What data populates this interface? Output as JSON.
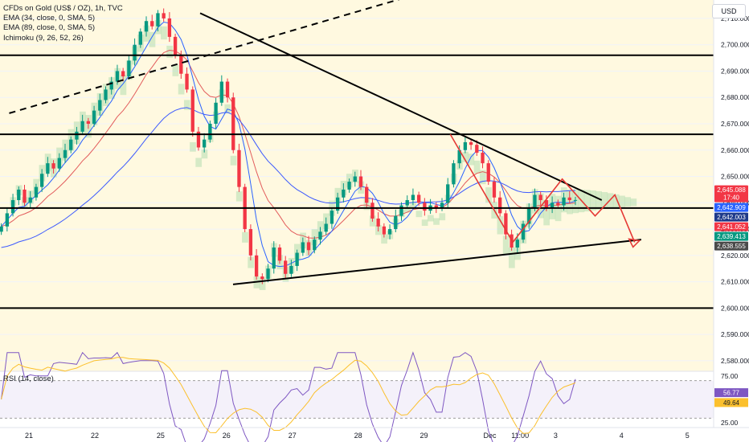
{
  "header": {
    "symbol_line": "CFDs on Gold (US$ / OZ), 1h, TVC",
    "indicators": [
      "EMA (34, close, 0, SMA, 5)",
      "EMA (89, close, 0, SMA, 5)",
      "Ichimoku (9, 26, 52, 26)"
    ],
    "currency_button": "USD",
    "rsi_label": "RSI (14, close)"
  },
  "colors": {
    "bull": "#089981",
    "bear": "#f23645",
    "ema34": "#e25c5c",
    "ema89": "#3d5afe",
    "kijun": "#2962ff",
    "cloud_green": "#a5d6a7",
    "cloud_red": "#ef9a9a",
    "rsi_line": "#7e57c2",
    "rsi_ma": "#fbc02d",
    "background_band": "#fff9e0",
    "drawing": "#000000",
    "path_arrow": "#e53935"
  },
  "chart_data": {
    "type": "candlestick",
    "ylim": [
      2576,
      2717
    ],
    "y_ticks": [
      "2,710.000",
      "2,700.000",
      "2,690.000",
      "2,680.000",
      "2,670.000",
      "2,660.000",
      "2,650.000",
      "2,640.000",
      "2,630.000",
      "2,620.000",
      "2,610.000",
      "2,600.000",
      "2,590.000",
      "2,580.000"
    ],
    "y_tick_values": [
      2710,
      2700,
      2690,
      2680,
      2670,
      2660,
      2650,
      2640,
      2630,
      2620,
      2610,
      2600,
      2590,
      2580
    ],
    "x_labels": [
      "21",
      "22",
      "25",
      "26",
      "27",
      "28",
      "29",
      "Dec",
      "11:00",
      "3",
      "4",
      "5"
    ],
    "x_label_days": [
      0,
      1,
      2,
      3,
      4,
      5,
      6,
      7,
      7.46,
      8,
      9,
      10
    ],
    "x_range_days": [
      -0.44,
      10.4
    ],
    "last_candle_day": 8.3,
    "candles_close": [
      2631,
      2636,
      2641,
      2645,
      2640,
      2642,
      2646,
      2651,
      2655,
      2653,
      2657,
      2660,
      2664,
      2667,
      2671,
      2670,
      2675,
      2679,
      2683,
      2686,
      2690,
      2688,
      2694,
      2700,
      2705,
      2709,
      2707,
      2712,
      2710,
      2703,
      2696,
      2689,
      2683,
      2667,
      2661,
      2664,
      2670,
      2678,
      2686,
      2680,
      2660,
      2646,
      2630,
      2620,
      2612,
      2611,
      2615,
      2623,
      2618,
      2613,
      2616,
      2621,
      2625,
      2622,
      2626,
      2629,
      2632,
      2637,
      2642,
      2645,
      2648,
      2650,
      2646,
      2640,
      2634,
      2631,
      2628,
      2630,
      2635,
      2639,
      2641,
      2643,
      2640,
      2637,
      2639,
      2638,
      2640,
      2647,
      2655,
      2660,
      2663,
      2662,
      2659,
      2655,
      2648,
      2642,
      2636,
      2628,
      2623,
      2626,
      2632,
      2638,
      2643,
      2641,
      2638,
      2640,
      2639,
      2642,
      2641,
      2641.05
    ],
    "price_labels": [
      {
        "text": "2,645.088",
        "sub": "17:40",
        "value": 2645.088,
        "bg": "#f23645"
      },
      {
        "text": "2,642.909",
        "value": 2642.909,
        "bg": "#2962ff"
      },
      {
        "text": "2,642.003",
        "value": 2642.003,
        "bg": "#1e3a8a"
      },
      {
        "text": "2,641.052",
        "value": 2641.052,
        "bg": "#f23645"
      },
      {
        "text": "2,639.413",
        "value": 2639.413,
        "bg": "#089981"
      },
      {
        "text": "2,638.555",
        "value": 2638.555,
        "bg": "#4a4a4a"
      }
    ],
    "horizontal_levels": [
      2696,
      2666,
      2638,
      2600
    ],
    "trendlines": [
      {
        "style": "solid",
        "from": [
          2.6,
          2712
        ],
        "to": [
          8.7,
          2641
        ]
      },
      {
        "style": "solid",
        "from": [
          3.1,
          2609
        ],
        "to": [
          9.3,
          2626
        ]
      },
      {
        "style": "dashed",
        "from": [
          -0.3,
          2674
        ],
        "to": [
          6.0,
          2720
        ]
      }
    ],
    "projection_path": [
      [
        6.4,
        2666
      ],
      [
        7.35,
        2625
      ],
      [
        8.1,
        2649
      ],
      [
        8.6,
        2635
      ],
      [
        8.9,
        2643
      ],
      [
        9.2,
        2625
      ]
    ],
    "rsi": {
      "ylim": [
        20,
        80
      ],
      "y_ticks": [
        "75.00",
        "25.00"
      ],
      "y_tick_values": [
        75,
        25
      ],
      "upper_band": 70,
      "lower_band": 30,
      "values_label": "56.77",
      "ma_label": "49.64",
      "rsi_value": 56.77,
      "rsi_ma_value": 49.64
    }
  }
}
